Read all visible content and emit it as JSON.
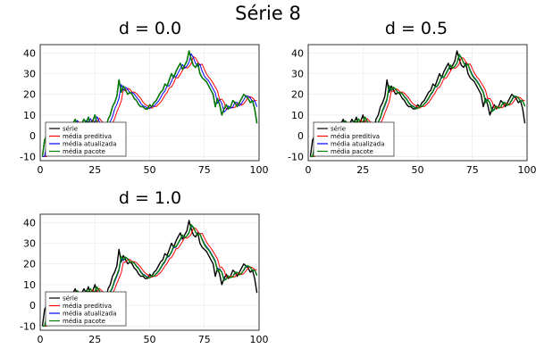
{
  "chart_data": {
    "type": "line",
    "title": "Série 8",
    "xlim": [
      0,
      100
    ],
    "ylim": [
      -12,
      44
    ],
    "xticks": [
      "0",
      "25",
      "50",
      "75",
      "100"
    ],
    "yticks": [
      "-10",
      "0",
      "10",
      "20",
      "30",
      "40"
    ],
    "grid": true,
    "legend_position": "bottom-left",
    "legend": [
      "série",
      "média preditiva",
      "média atualizada",
      "média pacote"
    ],
    "colors": {
      "serie": "#000000",
      "preditiva": "#ff0000",
      "atualizada": "#0000ff",
      "pacote": "#008000"
    },
    "x": [
      1,
      2,
      3,
      4,
      5,
      6,
      7,
      8,
      9,
      10,
      11,
      12,
      13,
      14,
      15,
      16,
      17,
      18,
      19,
      20,
      21,
      22,
      23,
      24,
      25,
      26,
      27,
      28,
      29,
      30,
      31,
      32,
      33,
      34,
      35,
      36,
      37,
      38,
      39,
      40,
      41,
      42,
      43,
      44,
      45,
      46,
      47,
      48,
      49,
      50,
      51,
      52,
      53,
      54,
      55,
      56,
      57,
      58,
      59,
      60,
      61,
      62,
      63,
      64,
      65,
      66,
      67,
      68,
      69,
      70,
      71,
      72,
      73,
      74,
      75,
      76,
      77,
      78,
      79,
      80,
      81,
      82,
      83,
      84,
      85,
      86,
      87,
      88,
      89,
      90,
      91,
      92,
      93,
      94,
      95,
      96,
      97,
      98,
      99
    ],
    "serie": [
      -10,
      -2,
      0,
      -1,
      0,
      1,
      2,
      3,
      1,
      2,
      3,
      4,
      5,
      4,
      6,
      8,
      5,
      4,
      6,
      8,
      6,
      9,
      5,
      7,
      10,
      6,
      5,
      4,
      5,
      3,
      8,
      10,
      14,
      16,
      19,
      27,
      21,
      24,
      22,
      20,
      21,
      20,
      18,
      17,
      15,
      14,
      14,
      13,
      13,
      15,
      14,
      16,
      17,
      19,
      21,
      22,
      25,
      24,
      27,
      30,
      28,
      31,
      33,
      35,
      32,
      34,
      36,
      41,
      37,
      34,
      33,
      35,
      30,
      28,
      27,
      26,
      24,
      22,
      20,
      14,
      18,
      15,
      10,
      13,
      15,
      13,
      14,
      17,
      16,
      14,
      16,
      18,
      20,
      19,
      18,
      16,
      17,
      13,
      6
    ],
    "panels": [
      {
        "title": "d = 0.0",
        "series": [
          {
            "name": "série",
            "values_ref": "serie"
          },
          {
            "name": "média preditiva",
            "lag": 2,
            "smooth": 0.55
          },
          {
            "name": "média atualizada",
            "lag": 1,
            "smooth": 0.75
          },
          {
            "name": "média pacote",
            "lag": 0,
            "smooth": 1.0
          }
        ]
      },
      {
        "title": "d = 0.5",
        "series": [
          {
            "name": "série",
            "values_ref": "serie"
          },
          {
            "name": "média preditiva",
            "lag": 2,
            "smooth": 0.5
          },
          {
            "name": "média atualizada",
            "lag": 1,
            "smooth": 0.6
          },
          {
            "name": "média pacote",
            "lag": 1,
            "smooth": 0.7
          }
        ]
      },
      {
        "title": "d = 1.0",
        "series": [
          {
            "name": "série",
            "values_ref": "serie"
          },
          {
            "name": "média preditiva",
            "lag": 2,
            "smooth": 0.45
          },
          {
            "name": "média atualizada",
            "lag": 1,
            "smooth": 0.55
          },
          {
            "name": "média pacote",
            "lag": 1,
            "smooth": 0.65
          }
        ]
      }
    ]
  }
}
